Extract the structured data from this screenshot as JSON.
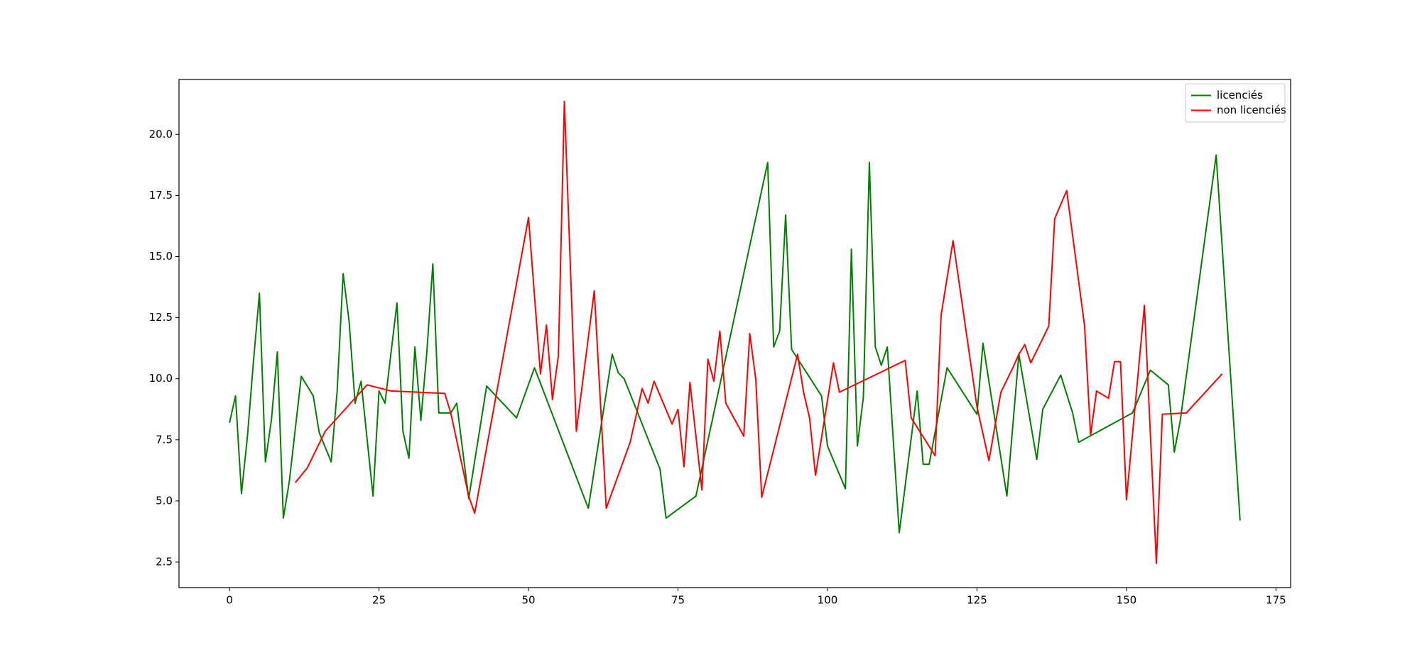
{
  "chart_data": {
    "type": "line",
    "xlim": [
      -8.45,
      177.45
    ],
    "xticks": [
      0,
      25,
      50,
      75,
      100,
      125,
      150,
      175
    ],
    "ylim": [
      1.455,
      22.245
    ],
    "yticks": [
      2.5,
      {
        "value": 5,
        "label": "5.0"
      },
      7.5,
      {
        "value": 10,
        "label": "10.0"
      },
      12.5,
      {
        "value": 15,
        "label": "15.0"
      },
      17.5,
      {
        "value": 20,
        "label": "20.0"
      }
    ],
    "grid": false,
    "legend": "upper right",
    "series": [
      {
        "name": "licenciés",
        "color": "#008000",
        "x": [
          0,
          1,
          2,
          3,
          4,
          5,
          6,
          7,
          8,
          9,
          10,
          12,
          14,
          15,
          17,
          18,
          19,
          20,
          21,
          22,
          24,
          25,
          26,
          28,
          29,
          30,
          31,
          32,
          33,
          34,
          35,
          37,
          38,
          40,
          43,
          48,
          51,
          60,
          64,
          65,
          66,
          72,
          73,
          78,
          90,
          91,
          92,
          93,
          94,
          99,
          100,
          103,
          104,
          105,
          106,
          107,
          108,
          109,
          110,
          112,
          115,
          116,
          117,
          120,
          125,
          126,
          130,
          132,
          135,
          136,
          139,
          141,
          142,
          151,
          154,
          157,
          158,
          159,
          165,
          169
        ],
        "values": [
          8.2,
          9.3,
          5.3,
          7.65,
          10.7,
          13.5,
          6.6,
          8.3,
          11.1,
          4.3,
          5.8,
          10.1,
          9.3,
          7.8,
          6.6,
          9.5,
          14.3,
          12.35,
          9.0,
          9.9,
          5.2,
          9.5,
          9.0,
          13.1,
          7.85,
          6.75,
          11.3,
          8.3,
          11.1,
          14.7,
          8.6,
          8.6,
          9.0,
          5.1,
          9.7,
          8.4,
          10.45,
          4.7,
          11.0,
          10.25,
          10.0,
          6.3,
          4.3,
          5.2,
          18.85,
          11.3,
          11.95,
          16.7,
          11.2,
          9.3,
          7.25,
          5.5,
          15.3,
          7.25,
          9.25,
          18.85,
          11.3,
          10.55,
          11.3,
          3.7,
          9.5,
          6.5,
          6.5,
          10.45,
          8.55,
          11.45,
          5.2,
          11.0,
          6.7,
          8.75,
          10.15,
          8.6,
          7.4,
          8.6,
          10.35,
          9.75,
          7.0,
          8.3,
          19.15,
          4.2
        ]
      },
      {
        "name": "non licenciés",
        "color": "#ff0000",
        "x": [
          11,
          13,
          16,
          23,
          27,
          36,
          37,
          40,
          41,
          50,
          52,
          53,
          54,
          55,
          56,
          58,
          61,
          63,
          67,
          69,
          70,
          71,
          74,
          75,
          76,
          77,
          79,
          80,
          81,
          82,
          83,
          86,
          87,
          88,
          89,
          95,
          96,
          97,
          98,
          101,
          102,
          113,
          114,
          118,
          119,
          121,
          125,
          127,
          129,
          131,
          132,
          133,
          134,
          137,
          138,
          140,
          143,
          144,
          145,
          147,
          148,
          149,
          150,
          153,
          155,
          156,
          160,
          166
        ],
        "values": [
          5.75,
          6.35,
          7.85,
          9.75,
          9.5,
          9.4,
          8.6,
          5.2,
          4.5,
          16.6,
          10.2,
          12.2,
          9.15,
          10.95,
          21.35,
          7.85,
          13.6,
          4.7,
          7.4,
          9.6,
          9.0,
          9.9,
          8.15,
          8.75,
          6.4,
          9.85,
          5.45,
          10.8,
          9.9,
          11.95,
          9.0,
          7.65,
          11.85,
          10.0,
          5.15,
          11.0,
          9.45,
          8.4,
          6.05,
          10.65,
          9.45,
          10.75,
          8.4,
          6.85,
          12.6,
          15.65,
          8.85,
          6.65,
          9.45,
          10.45,
          11.0,
          11.4,
          10.65,
          12.15,
          16.55,
          17.7,
          12.15,
          7.7,
          9.5,
          9.2,
          10.7,
          10.7,
          5.05,
          13.0,
          2.45,
          8.55,
          8.6,
          10.2
        ]
      }
    ]
  }
}
